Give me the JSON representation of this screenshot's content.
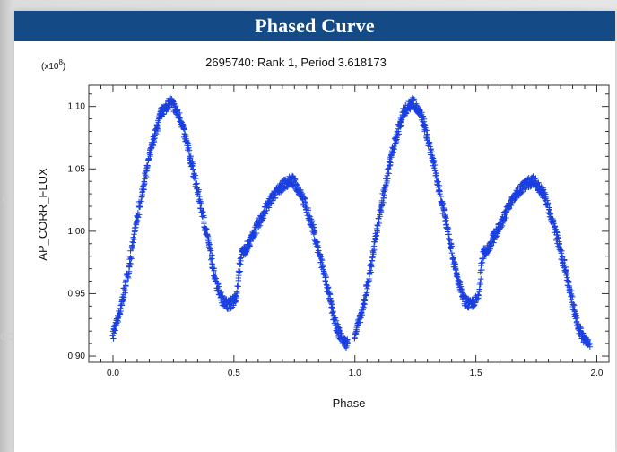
{
  "panel": {
    "title": "Phased Curve"
  },
  "chart_data": {
    "type": "scatter",
    "title": "2695740: Rank 1, Period 3.618173",
    "xlabel": "Phase",
    "ylabel": "AP_CORR_FLUX",
    "y_multiplier_label": "(x10",
    "y_multiplier_exp": "8",
    "xlim": [
      -0.1,
      2.05
    ],
    "ylim": [
      0.895,
      1.117
    ],
    "x_ticks": [
      {
        "value": 0.0,
        "label": "0.0"
      },
      {
        "value": 0.5,
        "label": "0.5"
      },
      {
        "value": 1.0,
        "label": "1.0"
      },
      {
        "value": 1.5,
        "label": "1.5"
      },
      {
        "value": 2.0,
        "label": "2.0"
      }
    ],
    "y_ticks": [
      {
        "value": 0.9,
        "label": "0.90"
      },
      {
        "value": 0.95,
        "label": "0.95"
      },
      {
        "value": 1.0,
        "label": "1.00"
      },
      {
        "value": 1.05,
        "label": "1.05"
      },
      {
        "value": 1.1,
        "label": "1.10"
      }
    ],
    "marker": "+",
    "color": "#1a3fe0",
    "grid": false,
    "series": [
      {
        "x": [
          0.0,
          0.03,
          0.06,
          0.1,
          0.15,
          0.2,
          0.24,
          0.28,
          0.33,
          0.38,
          0.42,
          0.45,
          0.48,
          0.51,
          0.53,
          0.55,
          0.6,
          0.65,
          0.7,
          0.74,
          0.78,
          0.83,
          0.88,
          0.92,
          0.95,
          0.97
        ],
        "y": [
          0.918,
          0.935,
          0.965,
          1.01,
          1.06,
          1.095,
          1.104,
          1.09,
          1.05,
          1.005,
          0.965,
          0.945,
          0.941,
          0.946,
          0.982,
          0.986,
          1.005,
          1.025,
          1.037,
          1.041,
          1.03,
          1.0,
          0.96,
          0.925,
          0.912,
          0.91
        ]
      }
    ]
  }
}
